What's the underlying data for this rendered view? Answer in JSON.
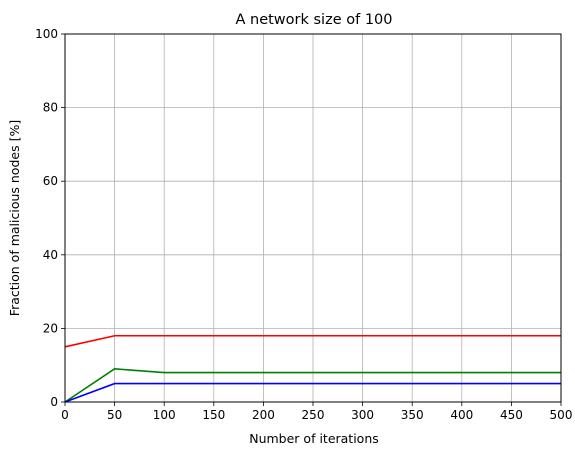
{
  "chart_data": {
    "type": "line",
    "title": "A network size of 100",
    "xlabel": "Number of iterations",
    "ylabel": "Fraction of malicious nodes [%]",
    "xlim": [
      0,
      500
    ],
    "ylim": [
      0,
      100
    ],
    "xticks": [
      0,
      50,
      100,
      150,
      200,
      250,
      300,
      350,
      400,
      450,
      500
    ],
    "yticks": [
      0,
      20,
      40,
      60,
      80,
      100
    ],
    "grid": true,
    "x": [
      0,
      50,
      100,
      150,
      200,
      250,
      300,
      350,
      400,
      450,
      500
    ],
    "series": [
      {
        "color": "#ff0000",
        "values": [
          15,
          18,
          18,
          18,
          18,
          18,
          18,
          18,
          18,
          18,
          18
        ]
      },
      {
        "color": "#008000",
        "values": [
          0,
          9,
          8,
          8,
          8,
          8,
          8,
          8,
          8,
          8,
          8
        ]
      },
      {
        "color": "#0000ff",
        "values": [
          0,
          5,
          5,
          5,
          5,
          5,
          5,
          5,
          5,
          5,
          5
        ]
      }
    ]
  }
}
